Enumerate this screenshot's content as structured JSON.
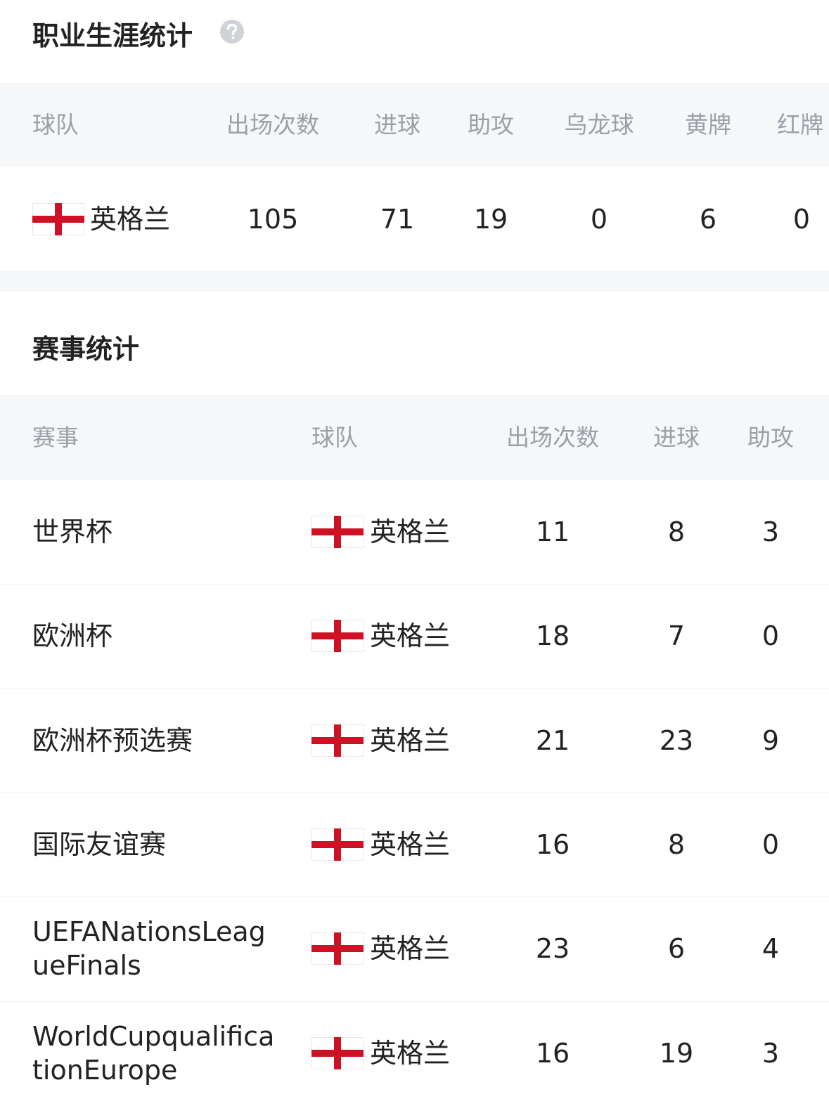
{
  "career": {
    "title": "职业生涯统计",
    "headers": [
      "球队",
      "出场次数",
      "进球",
      "助攻",
      "乌龙球",
      "黄牌",
      "红牌"
    ],
    "rows": [
      [
        "英格兰",
        105,
        71,
        19,
        0,
        6,
        0
      ]
    ]
  },
  "competitions": {
    "title": "赛事统计",
    "headers": [
      "赛事",
      "球队",
      "出场次数",
      "进球",
      "助攻"
    ],
    "rows": [
      [
        "世界杯",
        "英格兰",
        11,
        8,
        3
      ],
      [
        "欧洲杯",
        "英格兰",
        18,
        7,
        0
      ],
      [
        "欧洲杯预选赛",
        "英格兰",
        21,
        23,
        9
      ],
      [
        "国际友谊赛",
        "英格兰",
        16,
        8,
        0
      ],
      [
        "UEFANationsLeagueFinals",
        "英格兰",
        23,
        6,
        4
      ],
      [
        "WorldCupqualificationEurope",
        "英格兰",
        16,
        19,
        3
      ]
    ]
  }
}
